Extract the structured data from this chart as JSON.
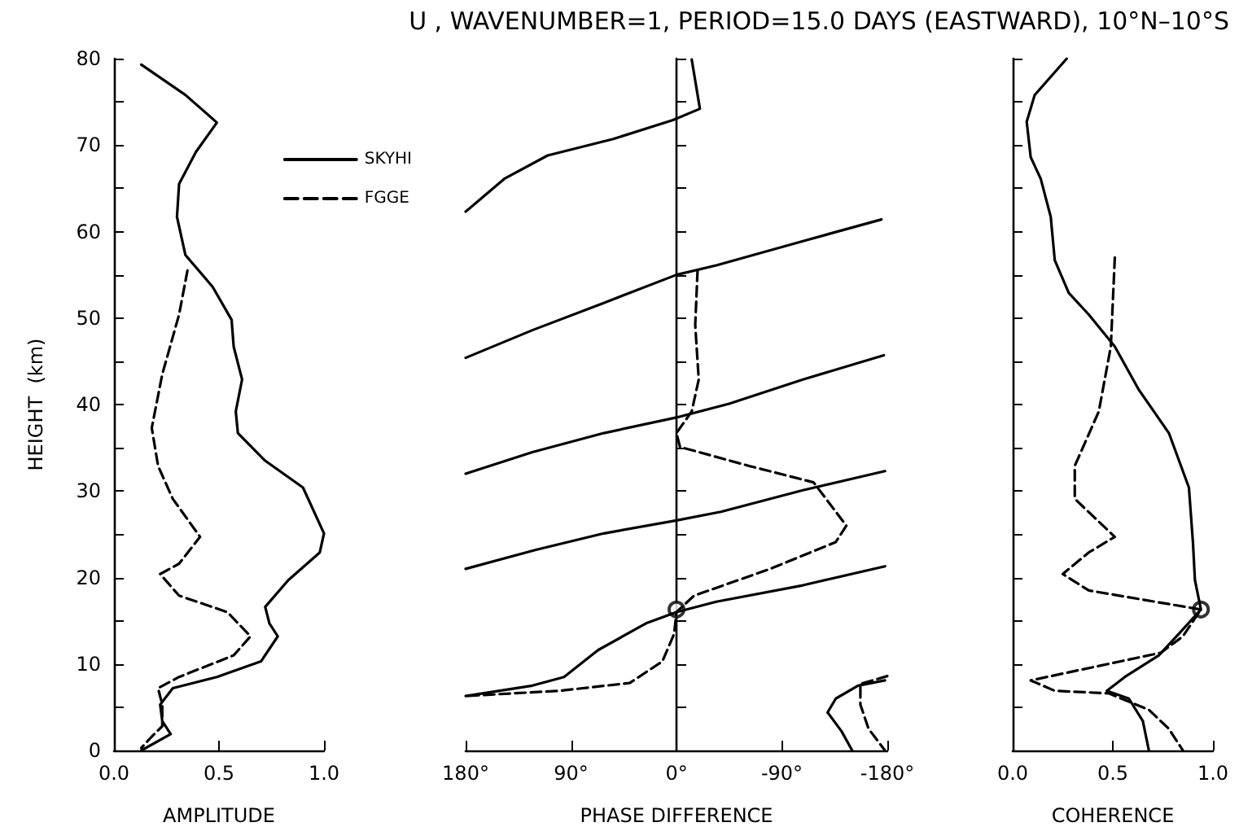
{
  "chart_data": [
    {
      "type": "line",
      "xlabel": "AMPLITUDE",
      "ylabel": "HEIGHT  (km)",
      "xlim": [
        0,
        1
      ],
      "ylim": [
        0,
        80
      ],
      "xticks": [
        {
          "value": 0,
          "label": "0.0"
        },
        {
          "value": 0.5,
          "label": "0.5"
        },
        {
          "value": 1,
          "label": "1.0"
        }
      ],
      "yticks": [
        0,
        {
          "value": 5,
          "label": null
        },
        10,
        {
          "value": 15,
          "label": null
        },
        20,
        {
          "value": 25,
          "label": null
        },
        30,
        {
          "value": 35,
          "label": null
        },
        40,
        {
          "value": 45,
          "label": null
        },
        50,
        {
          "value": 55,
          "label": null
        },
        60,
        {
          "value": 65,
          "label": null
        },
        70,
        {
          "value": 75,
          "label": null
        },
        80
      ],
      "legend": "top right",
      "marker": "none",
      "series": [
        {
          "name": "SKYHI",
          "color": "#000000",
          "line_style": "solid",
          "x": [
            0.13,
            0.34,
            0.49,
            0.39,
            0.31,
            0.3,
            0.34,
            0.47,
            0.56,
            0.57,
            0.61,
            0.58,
            0.59,
            0.72,
            0.9,
            1.0,
            0.98,
            0.83,
            0.72,
            0.74,
            0.78,
            0.7,
            0.49,
            0.28,
            0.22,
            0.23,
            0.27,
            0.13
          ],
          "values": [
            79.3,
            75.8,
            72.6,
            69.2,
            65.5,
            61.7,
            57.3,
            53.6,
            49.8,
            46.7,
            42.9,
            39.2,
            36.7,
            33.5,
            30.4,
            25.1,
            22.9,
            19.7,
            16.6,
            14.7,
            13.2,
            10.3,
            8.5,
            7.2,
            5.3,
            3.4,
            1.9,
            0
          ]
        },
        {
          "name": "FGGE",
          "color": "#000000",
          "line_style": "dashed",
          "x": [
            0.35,
            0.31,
            0.23,
            0.18,
            0.21,
            0.28,
            0.41,
            0.31,
            0.22,
            0.31,
            0.54,
            0.65,
            0.57,
            0.31,
            0.21,
            0.23,
            0.23,
            0.18,
            0.13
          ],
          "values": [
            55.5,
            50.4,
            43.5,
            37.3,
            32.9,
            29.1,
            24.7,
            21.6,
            20.4,
            17.9,
            16.0,
            13.2,
            11.0,
            8.5,
            7.2,
            5.3,
            2.8,
            1.6,
            0.3
          ]
        }
      ]
    },
    {
      "type": "line",
      "title": "U , WAVENUMBER=1, PERIOD=15.0 DAYS (EASTWARD), 10°N–10°S",
      "xlabel": "PHASE DIFFERENCE",
      "xlim": [
        180,
        -180
      ],
      "ylim": [
        0,
        80
      ],
      "tick_labels": "x",
      "xticks": [
        {
          "value": 180,
          "label": "180°"
        },
        {
          "value": 90,
          "label": "90°"
        },
        {
          "value": 0,
          "label": "0°"
        },
        {
          "value": -90,
          "label": "-90°"
        },
        {
          "value": -180,
          "label": "-180°"
        }
      ],
      "yticks": [
        {
          "value": 0,
          "label": null
        },
        {
          "value": 5,
          "label": null
        },
        {
          "value": 10,
          "label": null
        },
        {
          "value": 15,
          "label": null
        },
        {
          "value": 20,
          "label": null
        },
        {
          "value": 25,
          "label": null
        },
        {
          "value": 30,
          "label": null
        },
        {
          "value": 35,
          "label": null
        },
        {
          "value": 40,
          "label": null
        },
        {
          "value": 45,
          "label": null
        },
        {
          "value": 50,
          "label": null
        },
        {
          "value": 55,
          "label": null
        },
        {
          "value": 60,
          "label": null
        },
        {
          "value": 65,
          "label": null
        },
        {
          "value": 70,
          "label": null
        },
        {
          "value": 75,
          "label": null
        },
        {
          "value": 80,
          "label": null
        }
      ],
      "marker": "none",
      "series": [
        {
          "color": "#000000",
          "line_style": "solid",
          "x": [
            -13,
            -20,
            3,
            54,
            110,
            147,
            180,
            null,
            -175,
            -108,
            -34,
            0,
            63,
            123,
            180,
            null,
            -177,
            -108,
            -45,
            0,
            62,
            123,
            180,
            null,
            -178,
            -108,
            -38,
            0,
            62,
            120,
            180,
            null,
            -178,
            -108,
            -34,
            0,
            26,
            67,
            96,
            123,
            180,
            null,
            -178,
            -155,
            -136,
            -129,
            -141,
            -150
          ],
          "values": [
            79.9,
            74.2,
            72.9,
            70.7,
            68.8,
            66.1,
            62.3,
            null,
            61.4,
            58.9,
            56.1,
            55.0,
            51.7,
            48.6,
            45.4,
            null,
            45.7,
            42.9,
            40.1,
            38.5,
            36.7,
            34.5,
            32.0,
            null,
            32.3,
            30.1,
            27.6,
            26.6,
            25.1,
            23.2,
            21.0,
            null,
            21.3,
            19.1,
            17.2,
            16.0,
            14.7,
            11.6,
            8.5,
            7.5,
            6.3,
            null,
            8.1,
            7.5,
            6.0,
            4.4,
            2.2,
            0
          ]
        },
        {
          "color": "#000000",
          "line_style": "dashed",
          "x": [
            -18,
            -16,
            -19,
            -13,
            0,
            -3,
            -62,
            -117,
            -145,
            -136,
            -80,
            -15,
            0,
            2,
            12,
            40,
            100,
            180,
            null,
            -180,
            -157,
            -157,
            -164,
            -178
          ],
          "values": [
            55.5,
            49.2,
            42.9,
            39.2,
            36.7,
            35.1,
            32.9,
            31.0,
            26.0,
            24.1,
            21.0,
            17.9,
            16.0,
            13.5,
            10.3,
            7.8,
            6.9,
            6.3,
            null,
            8.6,
            7.7,
            5.3,
            2.5,
            0
          ]
        },
        {
          "type": "scatter",
          "color": "#000000",
          "marker": "circle",
          "x": [
            0
          ],
          "values": [
            16.3
          ]
        }
      ]
    },
    {
      "type": "line",
      "xlabel": "COHERENCE",
      "xlim": [
        0,
        1
      ],
      "ylim": [
        0,
        80
      ],
      "tick_labels": "x",
      "xticks": [
        {
          "value": 0,
          "label": "0.0"
        },
        {
          "value": 0.5,
          "label": "0.5"
        },
        {
          "value": 1,
          "label": "1.0"
        }
      ],
      "yticks": [
        {
          "value": 0,
          "label": null
        },
        {
          "value": 5,
          "label": null
        },
        {
          "value": 10,
          "label": null
        },
        {
          "value": 15,
          "label": null
        },
        {
          "value": 20,
          "label": null
        },
        {
          "value": 25,
          "label": null
        },
        {
          "value": 30,
          "label": null
        },
        {
          "value": 35,
          "label": null
        },
        {
          "value": 40,
          "label": null
        },
        {
          "value": 45,
          "label": null
        },
        {
          "value": 50,
          "label": null
        },
        {
          "value": 55,
          "label": null
        },
        {
          "value": 60,
          "label": null
        },
        {
          "value": 65,
          "label": null
        },
        {
          "value": 70,
          "label": null
        },
        {
          "value": 75,
          "label": null
        },
        {
          "value": 80,
          "label": null
        }
      ],
      "marker": "none",
      "series": [
        {
          "color": "#000000",
          "line_style": "solid",
          "x": [
            0.27,
            0.11,
            0.07,
            0.09,
            0.14,
            0.19,
            0.21,
            0.28,
            0.38,
            0.51,
            0.63,
            0.78,
            0.88,
            0.9,
            0.91,
            0.94,
            0.83,
            0.73,
            0.56,
            0.47,
            0.58,
            0.65,
            0.68
          ],
          "values": [
            80,
            75.8,
            72.7,
            68.6,
            66.1,
            61.7,
            56.7,
            52.9,
            50.4,
            46.7,
            41.7,
            36.7,
            30.4,
            24.1,
            19.7,
            16.3,
            13.5,
            11.0,
            8.5,
            6.9,
            6.0,
            3.4,
            0
          ]
        },
        {
          "color": "#000000",
          "line_style": "dashed",
          "x": [
            0.51,
            0.49,
            0.43,
            0.31,
            0.31,
            0.51,
            0.38,
            0.25,
            0.38,
            0.94,
            0.85,
            0.74,
            0.09,
            0.21,
            0.48,
            0.68,
            0.78,
            0.85
          ],
          "values": [
            57.0,
            46.7,
            39.2,
            32.9,
            29.1,
            24.7,
            22.9,
            20.4,
            18.5,
            16.3,
            13.2,
            11.3,
            8.1,
            6.9,
            6.6,
            4.7,
            2.5,
            0
          ]
        },
        {
          "type": "scatter",
          "color": "#000000",
          "marker": "circle",
          "x": [
            0.94
          ],
          "values": [
            16.3
          ]
        }
      ]
    }
  ]
}
